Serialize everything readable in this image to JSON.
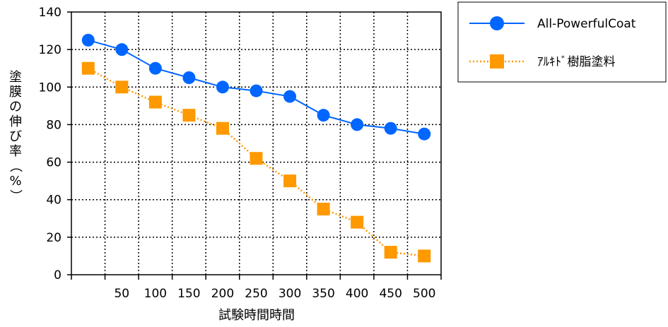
{
  "chart_data": {
    "type": "line",
    "xlabel": "試験時間時間",
    "ylabel": "塗膜の伸び率（%）",
    "x_ticks": [
      "50",
      "100",
      "150",
      "200",
      "250",
      "300",
      "350",
      "400",
      "450",
      "500"
    ],
    "y_ticks": [
      "0",
      "20",
      "40",
      "60",
      "80",
      "100",
      "120",
      "140"
    ],
    "ylim": [
      0,
      140
    ],
    "xlim": [
      0,
      550
    ],
    "grid": true,
    "legend_position": "top-right",
    "series": [
      {
        "name": "All-PowerfulCoat",
        "color": "#0066ff",
        "marker": "circle",
        "line_style": "solid",
        "x": [
          25,
          75,
          125,
          175,
          225,
          275,
          325,
          375,
          425,
          475,
          525
        ],
        "values": [
          125,
          120,
          110,
          105,
          100,
          98,
          95,
          85,
          80,
          78,
          75
        ]
      },
      {
        "name": "ｱﾙｷﾄﾞ樹脂塗料",
        "color": "#ff9900",
        "marker": "square",
        "line_style": "dotted",
        "x": [
          25,
          75,
          125,
          175,
          225,
          275,
          325,
          375,
          425,
          475,
          525
        ],
        "values": [
          110,
          100,
          92,
          85,
          78,
          62,
          50,
          35,
          28,
          12,
          10
        ]
      }
    ]
  }
}
